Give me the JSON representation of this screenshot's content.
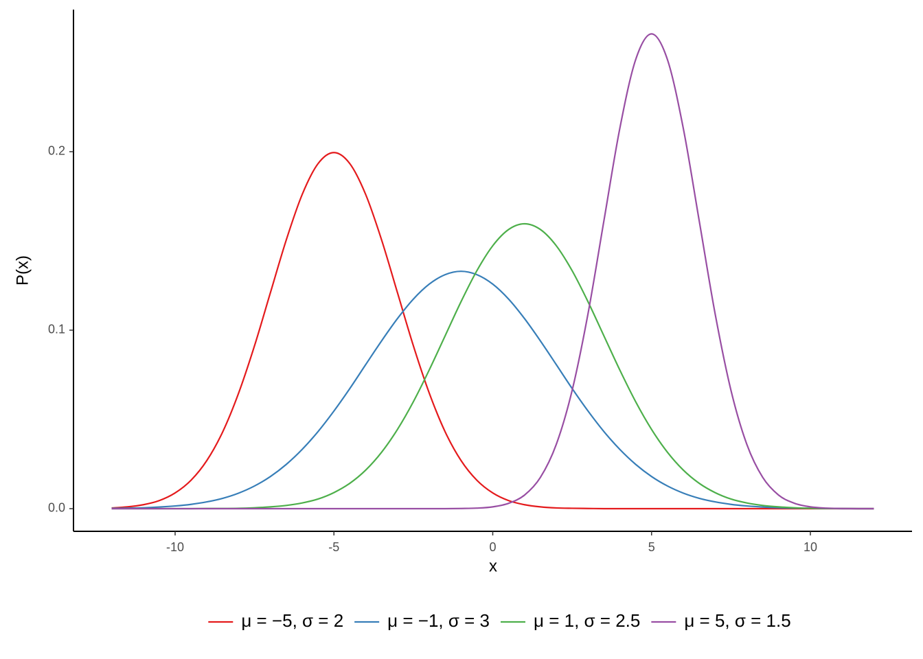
{
  "chart_data": {
    "type": "line",
    "x_label": "x",
    "y_label": "P(x)",
    "x": [
      -12,
      -11.5,
      -11,
      -10.5,
      -10,
      -9.5,
      -9,
      -8.5,
      -8,
      -7.5,
      -7,
      -6.5,
      -6,
      -5.5,
      -5,
      -4.5,
      -4,
      -3.5,
      -3,
      -2.5,
      -2,
      -1.5,
      -1,
      -0.5,
      0,
      0.5,
      1,
      1.5,
      2,
      2.5,
      3,
      3.5,
      4,
      4.5,
      5,
      5.5,
      6,
      6.5,
      7,
      7.5,
      8,
      8.5,
      9,
      9.5,
      10,
      10.5,
      11,
      11.5,
      12
    ],
    "series": [
      {
        "name": "μ = −5, σ = 2",
        "color": "#e41a1c",
        "values": [
          0.0004,
          0.001,
          0.0022,
          0.0045,
          0.0088,
          0.0159,
          0.027,
          0.0431,
          0.0648,
          0.0913,
          0.121,
          0.1506,
          0.176,
          0.1933,
          0.1995,
          0.1933,
          0.176,
          0.1506,
          0.121,
          0.0913,
          0.0648,
          0.0431,
          0.027,
          0.0159,
          0.0088,
          0.0045,
          0.0022,
          0.001,
          0.0004,
          0.0002,
          0.0001,
          0,
          0,
          0,
          0,
          0,
          0,
          0,
          0,
          0,
          0,
          0,
          0,
          0,
          0,
          0,
          0,
          0,
          0
        ]
      },
      {
        "name": "μ = −1, σ = 3",
        "color": "#377eb8",
        "values": [
          0.0002,
          0.0003,
          0.0005,
          0.0009,
          0.0015,
          0.0024,
          0.0038,
          0.0058,
          0.0087,
          0.0127,
          0.018,
          0.0248,
          0.0332,
          0.0432,
          0.0547,
          0.0673,
          0.0807,
          0.094,
          0.1065,
          0.1174,
          0.1258,
          0.1311,
          0.133,
          0.1311,
          0.1258,
          0.1174,
          0.1065,
          0.094,
          0.0807,
          0.0673,
          0.0547,
          0.0432,
          0.0332,
          0.0248,
          0.018,
          0.0127,
          0.0087,
          0.0058,
          0.0038,
          0.0024,
          0.0015,
          0.0009,
          0.0005,
          0.0003,
          0.0002,
          0.0001,
          0,
          0,
          0
        ]
      },
      {
        "name": "μ = 1, σ = 2.5",
        "color": "#4daf4a",
        "values": [
          0,
          0,
          0,
          0,
          0,
          0,
          0.0001,
          0.0001,
          0.0002,
          0.0005,
          0.001,
          0.0018,
          0.0032,
          0.0054,
          0.009,
          0.0142,
          0.0216,
          0.0316,
          0.0444,
          0.0599,
          0.0777,
          0.0968,
          0.1159,
          0.1333,
          0.1473,
          0.1564,
          0.1596,
          0.1564,
          0.1473,
          0.1333,
          0.1159,
          0.0968,
          0.0777,
          0.0599,
          0.0444,
          0.0316,
          0.0216,
          0.0142,
          0.009,
          0.0054,
          0.0032,
          0.0018,
          0.001,
          0.0005,
          0.0002,
          0.0001,
          0.0001,
          0,
          0
        ]
      },
      {
        "name": "μ = 5, σ = 1.5",
        "color": "#984ea3",
        "values": [
          0,
          0,
          0,
          0,
          0,
          0,
          0,
          0,
          0,
          0,
          0,
          0,
          0,
          0,
          0,
          0,
          0,
          0,
          0,
          0,
          0,
          0,
          0.0001,
          0.0003,
          0.001,
          0.003,
          0.0076,
          0.0175,
          0.036,
          0.0663,
          0.1093,
          0.1613,
          0.213,
          0.2516,
          0.266,
          0.2516,
          0.213,
          0.1613,
          0.1093,
          0.0663,
          0.036,
          0.0175,
          0.0076,
          0.003,
          0.001,
          0.0003,
          0.0001,
          0,
          0
        ]
      }
    ],
    "xlim": [
      -13.2,
      13.2
    ],
    "xticks": [
      -10,
      -5,
      0,
      5,
      10
    ],
    "ylim": [
      -0.0127,
      0.2796
    ],
    "yticks": [
      {
        "value": 0,
        "label": "0.0"
      },
      0.1,
      0.2
    ],
    "grid": false,
    "legend": "bottom"
  }
}
